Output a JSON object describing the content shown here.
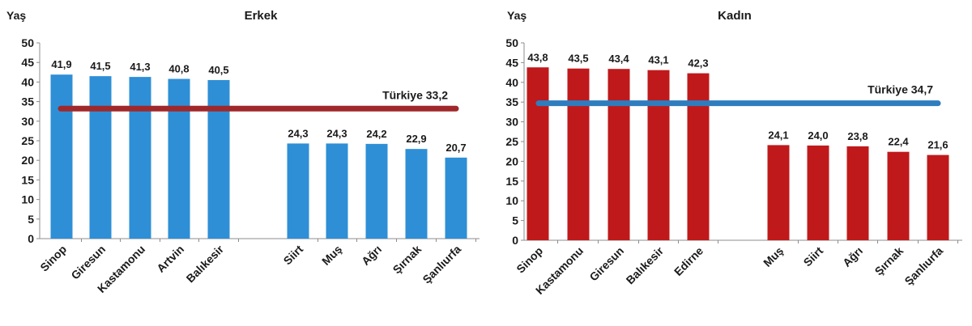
{
  "chart_data": [
    {
      "type": "bar",
      "title": "Erkek",
      "ylabel": "Yaş",
      "xlabel": "",
      "ylim": [
        0,
        50
      ],
      "yticks": [
        0,
        5,
        10,
        15,
        20,
        25,
        30,
        35,
        40,
        45,
        50
      ],
      "categories": [
        "Sinop",
        "Giresun",
        "Kastamonu",
        "Artvin",
        "Balıkesir",
        "Siirt",
        "Muş",
        "Ağrı",
        "Şırnak",
        "Şanlıurfa"
      ],
      "values": [
        41.9,
        41.5,
        41.3,
        40.8,
        40.5,
        24.3,
        24.3,
        24.2,
        22.9,
        20.7
      ],
      "value_labels": [
        "41,9",
        "41,5",
        "41,3",
        "40,8",
        "40,5",
        "24,3",
        "24,3",
        "24,2",
        "22,9",
        "20,7"
      ],
      "bar_color": "#2e8fd6",
      "reference": {
        "label": "Türkiye 33,2",
        "value": 33.2,
        "color": "#a0282a"
      },
      "grid": false
    },
    {
      "type": "bar",
      "title": "Kadın",
      "ylabel": "Yaş",
      "xlabel": "",
      "ylim": [
        0,
        50
      ],
      "yticks": [
        0,
        5,
        10,
        15,
        20,
        25,
        30,
        35,
        40,
        45,
        50
      ],
      "categories": [
        "Sinop",
        "Kastamonu",
        "Giresun",
        "Balıkesir",
        "Edirne",
        "Muş",
        "Siirt",
        "Ağrı",
        "Şırnak",
        "Şanlıurfa"
      ],
      "values": [
        43.8,
        43.5,
        43.4,
        43.1,
        42.3,
        24.1,
        24.0,
        23.8,
        22.4,
        21.6
      ],
      "value_labels": [
        "43,8",
        "43,5",
        "43,4",
        "43,1",
        "42,3",
        "24,1",
        "24,0",
        "23,8",
        "22,4",
        "21,6"
      ],
      "bar_color": "#c0191b",
      "reference": {
        "label": "Türkiye 34,7",
        "value": 34.7,
        "color": "#2e7dbe"
      },
      "grid": false
    }
  ]
}
